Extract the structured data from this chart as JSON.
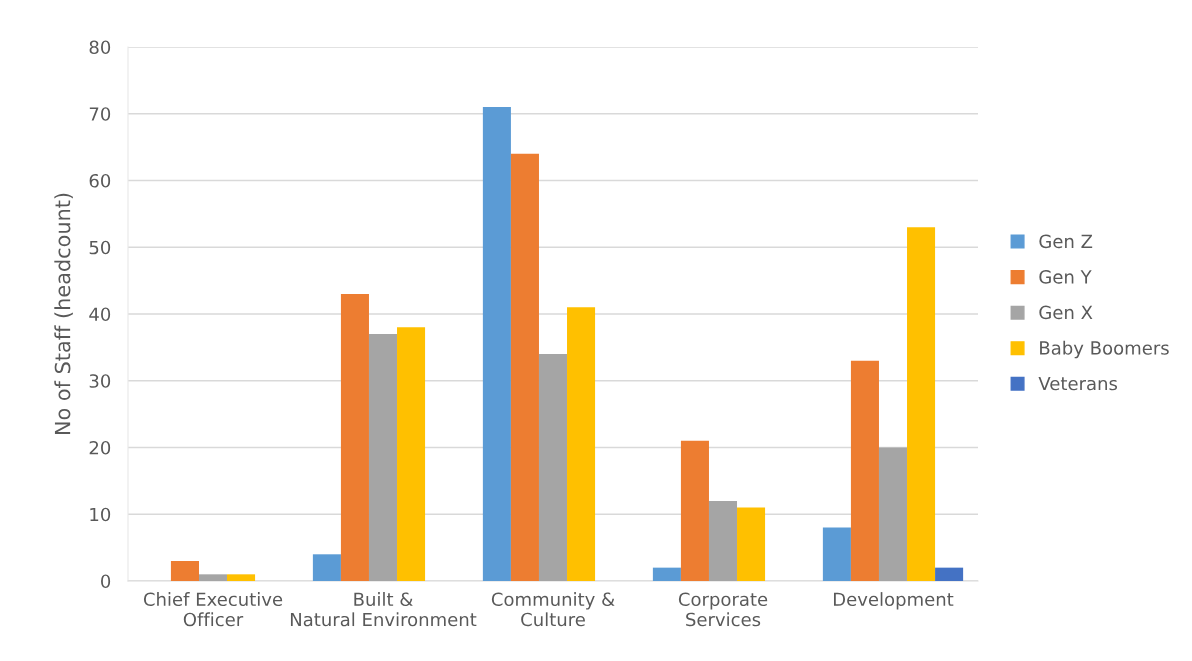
{
  "chart_data": {
    "type": "bar",
    "ylabel": "No of Staff (headcount)",
    "categories": [
      "Chief Executive Officer",
      "Built & Natural Environment",
      "Community & Culture",
      "Corporate Services",
      "Development"
    ],
    "series": [
      {
        "name": "Gen Z",
        "color": "#5b9bd5",
        "values": [
          0,
          4,
          71,
          2,
          8
        ]
      },
      {
        "name": "Gen Y",
        "color": "#ed7d31",
        "values": [
          3,
          43,
          64,
          21,
          33
        ]
      },
      {
        "name": "Gen X",
        "color": "#a5a5a5",
        "values": [
          1,
          37,
          34,
          12,
          20
        ]
      },
      {
        "name": "Baby Boomers",
        "color": "#ffc000",
        "values": [
          1,
          38,
          41,
          11,
          53
        ]
      },
      {
        "name": "Veterans",
        "color": "#4472c4",
        "values": [
          0,
          0,
          0,
          0,
          2
        ]
      }
    ],
    "ylim": [
      0,
      80
    ],
    "yticks": [
      0,
      10,
      20,
      30,
      40,
      50,
      60,
      70,
      80
    ],
    "grid": "y",
    "legend": "right"
  }
}
